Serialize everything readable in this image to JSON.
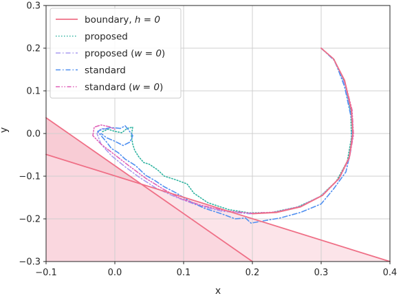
{
  "chart_data": {
    "type": "line",
    "xlabel": "x",
    "ylabel": "y",
    "xlim": [
      -0.1,
      0.4
    ],
    "ylim": [
      -0.3,
      0.3
    ],
    "xticks": [
      -0.1,
      0.0,
      0.1,
      0.2,
      0.3,
      0.4
    ],
    "yticks": [
      -0.3,
      -0.2,
      -0.1,
      0.0,
      0.1,
      0.2,
      0.3
    ],
    "xtick_labels": [
      "−0.1",
      "0.0",
      "0.1",
      "0.2",
      "0.3",
      "0.4"
    ],
    "ytick_labels": [
      "−0.3",
      "−0.2",
      "−0.1",
      "0.0",
      "0.1",
      "0.2",
      "0.3"
    ],
    "grid": true,
    "legend_position": "top-left",
    "regions": [
      {
        "kind": "unsafe-region-1",
        "color": "#f7c6d0",
        "polygon": [
          [
            -0.1,
            0.037
          ],
          [
            0.2,
            -0.3
          ],
          [
            -0.1,
            -0.3
          ]
        ]
      },
      {
        "kind": "unsafe-region-2",
        "color": "#fbdbe2",
        "polygon": [
          [
            -0.1,
            -0.049
          ],
          [
            0.4,
            -0.3
          ],
          [
            -0.1,
            -0.3
          ]
        ]
      }
    ],
    "series": [
      {
        "name": "boundary, h = 0",
        "legend_label": "boundary, ",
        "legend_math": "h = 0",
        "style": "solid",
        "color": "#ef6f86",
        "segments": [
          [
            [
              -0.1,
              0.037
            ],
            [
              0.2,
              -0.3
            ]
          ],
          [
            [
              -0.1,
              -0.049
            ],
            [
              0.4,
              -0.3
            ]
          ],
          [
            [
              0.3,
              0.2
            ],
            [
              0.318,
              0.175
            ],
            [
              0.334,
              0.125
            ],
            [
              0.344,
              0.055
            ],
            [
              0.346,
              0.0
            ],
            [
              0.341,
              -0.055
            ],
            [
              0.326,
              -0.105
            ],
            [
              0.302,
              -0.145
            ],
            [
              0.27,
              -0.172
            ],
            [
              0.235,
              -0.185
            ],
            [
              0.2,
              -0.188
            ]
          ]
        ]
      },
      {
        "name": "proposed",
        "legend_label": "proposed",
        "legend_math": "",
        "style": "dotted",
        "color": "#2fb3a0",
        "points": [
          [
            0.3,
            0.2
          ],
          [
            0.319,
            0.173
          ],
          [
            0.334,
            0.12
          ],
          [
            0.343,
            0.05
          ],
          [
            0.344,
            -0.01
          ],
          [
            0.338,
            -0.065
          ],
          [
            0.322,
            -0.112
          ],
          [
            0.298,
            -0.148
          ],
          [
            0.266,
            -0.172
          ],
          [
            0.228,
            -0.185
          ],
          [
            0.195,
            -0.186
          ],
          [
            0.165,
            -0.178
          ],
          [
            0.135,
            -0.162
          ],
          [
            0.115,
            -0.14
          ],
          [
            0.105,
            -0.118
          ],
          [
            0.088,
            -0.108
          ],
          [
            0.072,
            -0.1
          ],
          [
            0.062,
            -0.085
          ],
          [
            0.05,
            -0.072
          ],
          [
            0.042,
            -0.068
          ],
          [
            0.035,
            -0.055
          ],
          [
            0.029,
            -0.04
          ],
          [
            0.026,
            -0.025
          ],
          [
            0.024,
            -0.005
          ],
          [
            0.026,
            0.015
          ],
          [
            0.018,
            0.012
          ],
          [
            0.01,
            0.002
          ],
          [
            0.0,
            0.005
          ],
          [
            -0.01,
            0.01
          ],
          [
            -0.02,
            0.003
          ]
        ]
      },
      {
        "name": "proposed (w = 0)",
        "legend_label": "proposed (",
        "legend_math": "w = 0",
        "style": "dashdot",
        "color": "#a99bf0",
        "points": [
          [
            0.3,
            0.2
          ],
          [
            0.318,
            0.174
          ],
          [
            0.333,
            0.122
          ],
          [
            0.344,
            0.052
          ],
          [
            0.346,
            -0.005
          ],
          [
            0.34,
            -0.06
          ],
          [
            0.325,
            -0.108
          ],
          [
            0.3,
            -0.146
          ],
          [
            0.268,
            -0.172
          ],
          [
            0.232,
            -0.185
          ],
          [
            0.195,
            -0.188
          ],
          [
            0.155,
            -0.182
          ],
          [
            0.12,
            -0.168
          ],
          [
            0.09,
            -0.15
          ],
          [
            0.06,
            -0.128
          ],
          [
            0.035,
            -0.102
          ],
          [
            0.015,
            -0.078
          ],
          [
            -0.005,
            -0.052
          ],
          [
            -0.02,
            -0.025
          ],
          [
            -0.026,
            0.0
          ],
          [
            -0.02,
            0.012
          ],
          [
            -0.01,
            0.01
          ]
        ]
      },
      {
        "name": "standard",
        "legend_label": "standard",
        "legend_math": "",
        "style": "dashdot",
        "color": "#4f8ff0",
        "points": [
          [
            0.3,
            0.2
          ],
          [
            0.32,
            0.17
          ],
          [
            0.334,
            0.11
          ],
          [
            0.346,
            0.02
          ],
          [
            0.343,
            -0.04
          ],
          [
            0.336,
            -0.09
          ],
          [
            0.318,
            -0.13
          ],
          [
            0.3,
            -0.165
          ],
          [
            0.27,
            -0.185
          ],
          [
            0.24,
            -0.198
          ],
          [
            0.215,
            -0.205
          ],
          [
            0.198,
            -0.21
          ],
          [
            0.19,
            -0.198
          ],
          [
            0.175,
            -0.2
          ],
          [
            0.155,
            -0.188
          ],
          [
            0.13,
            -0.175
          ],
          [
            0.11,
            -0.16
          ],
          [
            0.09,
            -0.14
          ],
          [
            0.072,
            -0.125
          ],
          [
            0.058,
            -0.11
          ],
          [
            0.045,
            -0.098
          ],
          [
            0.03,
            -0.075
          ],
          [
            0.015,
            -0.06
          ],
          [
            0.005,
            -0.045
          ],
          [
            -0.005,
            -0.035
          ],
          [
            -0.012,
            -0.02
          ],
          [
            -0.02,
            -0.005
          ],
          [
            -0.025,
            0.005
          ],
          [
            -0.018,
            0.01
          ],
          [
            -0.005,
            0.014
          ],
          [
            0.008,
            0.012
          ],
          [
            0.015,
            0.018
          ],
          [
            0.02,
            0.008
          ],
          [
            0.026,
            -0.005
          ],
          [
            0.022,
            -0.02
          ],
          [
            0.012,
            -0.028
          ],
          [
            0.0,
            -0.018
          ],
          [
            -0.012,
            -0.01
          ],
          [
            -0.02,
            0.0
          ]
        ]
      },
      {
        "name": "standard (w = 0)",
        "legend_label": "standard (",
        "legend_math": "w = 0",
        "style": "dashdotdot",
        "color": "#e062b8",
        "points": [
          [
            0.3,
            0.2
          ],
          [
            0.318,
            0.175
          ],
          [
            0.334,
            0.124
          ],
          [
            0.345,
            0.055
          ],
          [
            0.347,
            -0.003
          ],
          [
            0.341,
            -0.058
          ],
          [
            0.326,
            -0.106
          ],
          [
            0.302,
            -0.145
          ],
          [
            0.27,
            -0.171
          ],
          [
            0.234,
            -0.184
          ],
          [
            0.198,
            -0.187
          ],
          [
            0.16,
            -0.181
          ],
          [
            0.125,
            -0.168
          ],
          [
            0.095,
            -0.152
          ],
          [
            0.07,
            -0.13
          ],
          [
            0.045,
            -0.105
          ],
          [
            0.02,
            -0.075
          ],
          [
            0.0,
            -0.05
          ],
          [
            -0.02,
            -0.025
          ],
          [
            -0.032,
            -0.005
          ],
          [
            -0.03,
            0.015
          ],
          [
            -0.02,
            0.02
          ],
          [
            -0.008,
            0.016
          ],
          [
            0.0,
            0.01
          ]
        ]
      }
    ]
  }
}
